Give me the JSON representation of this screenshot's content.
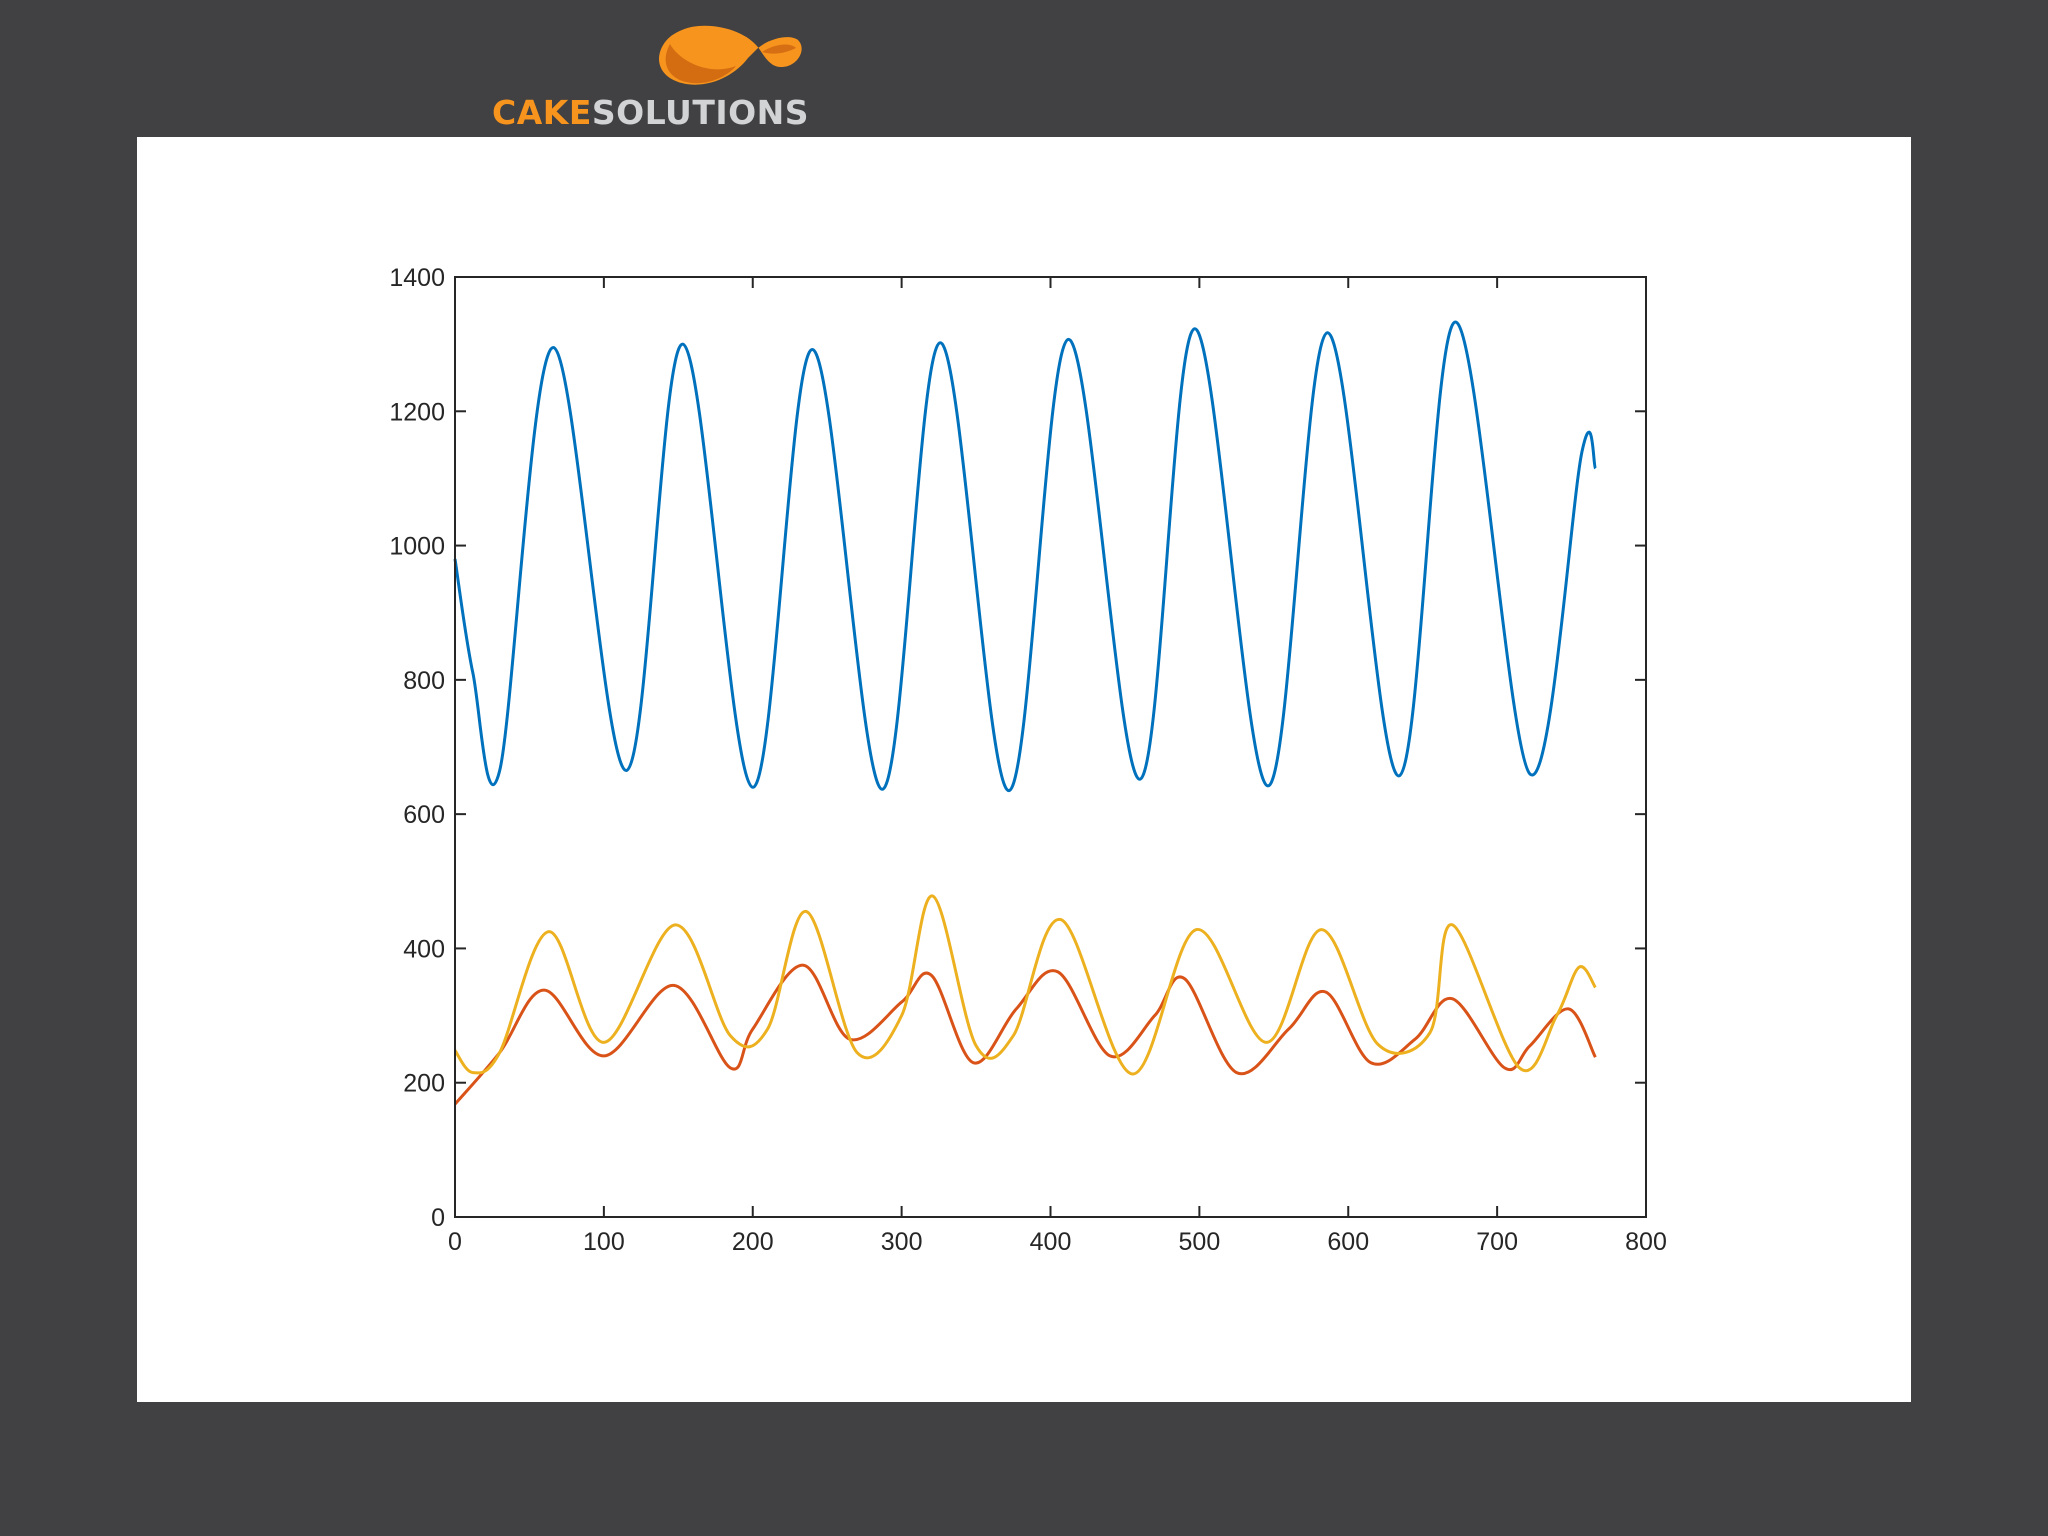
{
  "logo": {
    "brand_part1": "CAKE",
    "brand_part2": "SOLUTIONS",
    "colors": {
      "primary": "#f7941d",
      "secondary": "#d1d3d4"
    }
  },
  "colors": {
    "background": "#414042",
    "panel": "#ffffff"
  },
  "chart_data": {
    "type": "line",
    "title": "",
    "xlabel": "",
    "ylabel": "",
    "xlim": [
      0,
      800
    ],
    "ylim": [
      0,
      1400
    ],
    "xticks": [
      "0",
      "100",
      "200",
      "300",
      "400",
      "500",
      "600",
      "700",
      "800"
    ],
    "yticks": [
      "0",
      "200",
      "400",
      "600",
      "800",
      "1000",
      "1200",
      "1400"
    ],
    "grid": false,
    "legend": "none",
    "series": [
      {
        "color": "#0072bd",
        "x": [
          0,
          12,
          30,
          66,
          115,
          153,
          200,
          240,
          287,
          326,
          372,
          412,
          460,
          497,
          546,
          586,
          634,
          672,
          722,
          757,
          766
        ],
        "y": [
          980,
          810,
          665,
          1295,
          665,
          1300,
          640,
          1292,
          637,
          1302,
          635,
          1307,
          652,
          1323,
          642,
          1317,
          657,
          1333,
          660,
          1140,
          1115
        ]
      },
      {
        "color": "#d95319",
        "x": [
          0,
          30,
          60,
          100,
          147,
          185,
          200,
          234,
          265,
          300,
          320,
          348,
          377,
          405,
          440,
          470,
          490,
          525,
          560,
          585,
          615,
          645,
          670,
          705,
          722,
          748,
          766
        ],
        "y": [
          168,
          245,
          338,
          240,
          345,
          222,
          280,
          375,
          265,
          320,
          360,
          230,
          310,
          365,
          240,
          300,
          355,
          215,
          280,
          335,
          230,
          265,
          325,
          222,
          255,
          310,
          238
        ]
      },
      {
        "color": "#edb120",
        "x": [
          0,
          12,
          30,
          63,
          100,
          148,
          185,
          210,
          236,
          270,
          300,
          321,
          350,
          375,
          407,
          455,
          498,
          545,
          582,
          620,
          655,
          670,
          715,
          740,
          755,
          766
        ],
        "y": [
          248,
          215,
          245,
          425,
          260,
          435,
          270,
          280,
          455,
          245,
          300,
          478,
          255,
          270,
          443,
          213,
          428,
          260,
          428,
          257,
          275,
          435,
          222,
          300,
          372,
          342
        ]
      }
    ]
  }
}
